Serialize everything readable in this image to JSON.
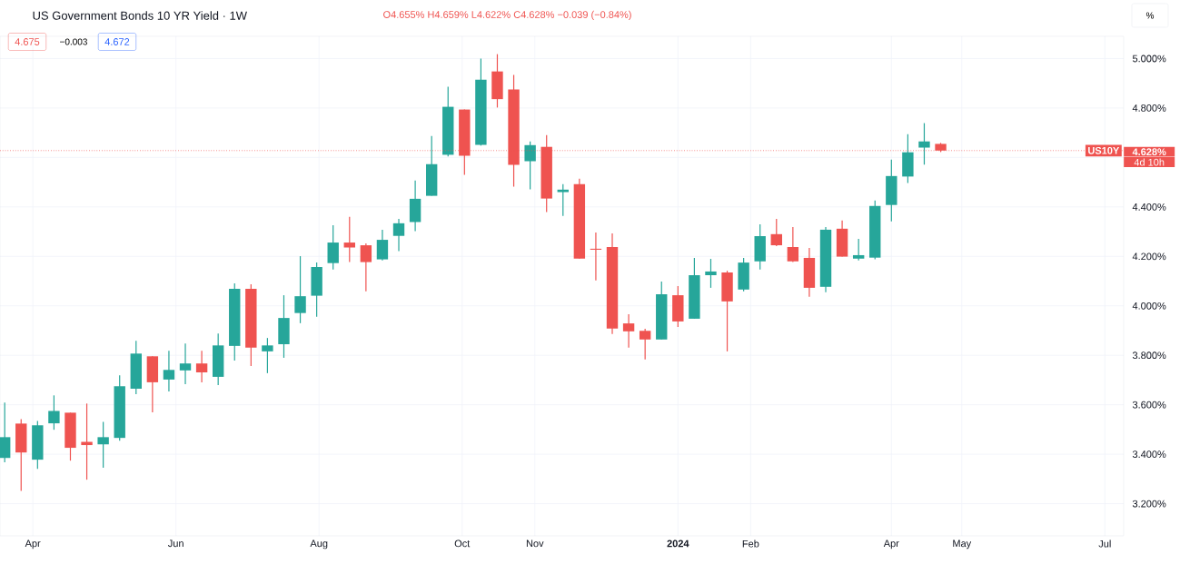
{
  "chart_data": {
    "type": "candlestick",
    "title": "US Government Bonds 10 YR Yield · 1W",
    "annotations": [
      "O4.655% H4.659% L4.622% C4.628% −0.039 (−0.84%)",
      "4.675",
      "−0.003",
      "4.672",
      "4.628%",
      "4d 10h",
      "%"
    ],
    "x": [
      "2023-03-20",
      "2023-03-27",
      "2023-04-03",
      "2023-04-10",
      "2023-04-17",
      "2023-04-24",
      "2023-05-01",
      "2023-05-08",
      "2023-05-15",
      "2023-05-22",
      "2023-05-29",
      "2023-06-05",
      "2023-06-12",
      "2023-06-19",
      "2023-06-26",
      "2023-07-03",
      "2023-07-10",
      "2023-07-17",
      "2023-07-24",
      "2023-07-31",
      "2023-08-07",
      "2023-08-14",
      "2023-08-21",
      "2023-08-28",
      "2023-09-04",
      "2023-09-11",
      "2023-09-18",
      "2023-09-25",
      "2023-10-02",
      "2023-10-09",
      "2023-10-16",
      "2023-10-23",
      "2023-10-30",
      "2023-11-06",
      "2023-11-13",
      "2023-11-20",
      "2023-11-27",
      "2023-12-04",
      "2023-12-11",
      "2023-12-18",
      "2023-12-25",
      "2024-01-01",
      "2024-01-08",
      "2024-01-15",
      "2024-01-22",
      "2024-01-29",
      "2024-02-05",
      "2024-02-12",
      "2024-02-19",
      "2024-02-26",
      "2024-03-04",
      "2024-03-11",
      "2024-03-18",
      "2024-03-25",
      "2024-04-01",
      "2024-04-08",
      "2024-04-15",
      "2024-04-22"
    ],
    "ohlc": [
      [
        3.385,
        3.609,
        3.367,
        3.469
      ],
      [
        3.524,
        3.542,
        3.252,
        3.407
      ],
      [
        3.378,
        3.535,
        3.341,
        3.517
      ],
      [
        3.525,
        3.638,
        3.499,
        3.575
      ],
      [
        3.568,
        3.568,
        3.374,
        3.426
      ],
      [
        3.45,
        3.605,
        3.297,
        3.437
      ],
      [
        3.44,
        3.531,
        3.345,
        3.469
      ],
      [
        3.466,
        3.719,
        3.455,
        3.675
      ],
      [
        3.665,
        3.859,
        3.643,
        3.807
      ],
      [
        3.796,
        3.796,
        3.569,
        3.691
      ],
      [
        3.702,
        3.818,
        3.654,
        3.741
      ],
      [
        3.739,
        3.848,
        3.683,
        3.767
      ],
      [
        3.767,
        3.818,
        3.691,
        3.731
      ],
      [
        3.713,
        3.888,
        3.68,
        3.84
      ],
      [
        3.838,
        4.091,
        3.779,
        4.069
      ],
      [
        4.069,
        4.087,
        3.757,
        3.831
      ],
      [
        3.816,
        3.87,
        3.728,
        3.84
      ],
      [
        3.845,
        4.043,
        3.79,
        3.951
      ],
      [
        3.971,
        4.201,
        3.93,
        4.039
      ],
      [
        4.041,
        4.175,
        3.956,
        4.157
      ],
      [
        4.173,
        4.326,
        4.147,
        4.256
      ],
      [
        4.256,
        4.36,
        4.177,
        4.236
      ],
      [
        4.245,
        4.253,
        4.059,
        4.177
      ],
      [
        4.188,
        4.308,
        4.184,
        4.267
      ],
      [
        4.283,
        4.352,
        4.221,
        4.334
      ],
      [
        4.339,
        4.507,
        4.302,
        4.433
      ],
      [
        4.445,
        4.687,
        4.445,
        4.573
      ],
      [
        4.611,
        4.886,
        4.604,
        4.805
      ],
      [
        4.794,
        4.794,
        4.53,
        4.607
      ],
      [
        4.651,
        5.0,
        4.648,
        4.915
      ],
      [
        4.948,
        5.018,
        4.802,
        4.836
      ],
      [
        4.875,
        4.934,
        4.482,
        4.57
      ],
      [
        4.585,
        4.665,
        4.471,
        4.65
      ],
      [
        4.643,
        4.691,
        4.379,
        4.434
      ],
      [
        4.46,
        4.492,
        4.364,
        4.47
      ],
      [
        4.492,
        4.514,
        4.191,
        4.191
      ],
      [
        4.231,
        4.297,
        4.103,
        4.227
      ],
      [
        4.238,
        4.293,
        3.886,
        3.908
      ],
      [
        3.929,
        3.966,
        3.831,
        3.897
      ],
      [
        3.899,
        3.907,
        3.783,
        3.864
      ],
      [
        3.864,
        4.098,
        3.864,
        4.047
      ],
      [
        4.043,
        4.08,
        3.915,
        3.937
      ],
      [
        3.948,
        4.194,
        3.948,
        4.124
      ],
      [
        4.124,
        4.19,
        4.073,
        4.139
      ],
      [
        4.135,
        4.142,
        3.816,
        4.018
      ],
      [
        4.066,
        4.194,
        4.059,
        4.175
      ],
      [
        4.18,
        4.33,
        4.147,
        4.282
      ],
      [
        4.29,
        4.352,
        4.242,
        4.245
      ],
      [
        4.238,
        4.319,
        4.177,
        4.18
      ],
      [
        4.194,
        4.234,
        4.037,
        4.073
      ],
      [
        4.077,
        4.319,
        4.055,
        4.308
      ],
      [
        4.312,
        4.345,
        4.199,
        4.199
      ],
      [
        4.191,
        4.271,
        4.184,
        4.205
      ],
      [
        4.195,
        4.426,
        4.188,
        4.404
      ],
      [
        4.408,
        4.591,
        4.342,
        4.525
      ],
      [
        4.523,
        4.694,
        4.497,
        4.621
      ],
      [
        4.64,
        4.739,
        4.571,
        4.665
      ],
      [
        4.655,
        4.659,
        4.622,
        4.628
      ]
    ],
    "colors": [
      "#26a69a",
      "#ef5350",
      "#26a69a",
      "#26a69a",
      "#ef5350",
      "#ef5350",
      "#26a69a",
      "#26a69a",
      "#26a69a",
      "#ef5350",
      "#26a69a",
      "#26a69a",
      "#ef5350",
      "#26a69a",
      "#26a69a",
      "#ef5350",
      "#26a69a",
      "#26a69a",
      "#26a69a",
      "#26a69a",
      "#26a69a",
      "#ef5350",
      "#ef5350",
      "#26a69a",
      "#26a69a",
      "#26a69a",
      "#26a69a",
      "#26a69a",
      "#ef5350",
      "#26a69a",
      "#ef5350",
      "#ef5350",
      "#26a69a",
      "#ef5350",
      "#26a69a",
      "#ef5350",
      "#ef5350",
      "#ef5350",
      "#ef5350",
      "#ef5350",
      "#26a69a",
      "#ef5350",
      "#26a69a",
      "#26a69a",
      "#ef5350",
      "#26a69a",
      "#26a69a",
      "#ef5350",
      "#ef5350",
      "#ef5350",
      "#26a69a",
      "#ef5350",
      "#26a69a",
      "#26a69a",
      "#26a69a",
      "#26a69a",
      "#26a69a",
      "#ef5350"
    ],
    "xlim": [
      "2023-03-18",
      "2024-07-09"
    ],
    "xticks": [
      {
        "value": "2023-04-01",
        "label": "Apr"
      },
      {
        "value": "2023-06-01",
        "label": "Jun"
      },
      {
        "value": "2023-08-01",
        "label": "Aug"
      },
      {
        "value": "2023-10-01",
        "label": "Oct"
      },
      {
        "value": "2023-11-01",
        "label": "Nov"
      },
      {
        "value": "2024-01-01",
        "label": "**2024**"
      },
      {
        "value": "2024-02-01",
        "label": "Feb"
      },
      {
        "value": "2024-04-01",
        "label": "Apr"
      },
      {
        "value": "2024-05-01",
        "label": "May"
      },
      {
        "value": "2024-07-01",
        "label": "Jul"
      }
    ],
    "ylim": [
      3.07,
      5.09
    ],
    "yticks": [
      {
        "value": 3.2,
        "label": "3.200%"
      },
      {
        "value": 3.4,
        "label": "3.400%"
      },
      {
        "value": 3.6,
        "label": "3.600%"
      },
      {
        "value": 3.8,
        "label": "3.800%"
      },
      {
        "value": 4.0,
        "label": "4.000%"
      },
      {
        "value": 4.2,
        "label": "4.200%"
      },
      {
        "value": 4.4,
        "label": "4.400%"
      },
      {
        "value": 4.6,
        "label": null
      },
      {
        "value": 4.8,
        "label": "4.800%"
      },
      {
        "value": 5.0,
        "label": "5.000%"
      }
    ],
    "ref_lines": [
      {
        "axis": "y",
        "value": 4.628,
        "label": "US10Y",
        "color": "#ef5350",
        "line_style": "dotted"
      }
    ],
    "grid": true
  }
}
